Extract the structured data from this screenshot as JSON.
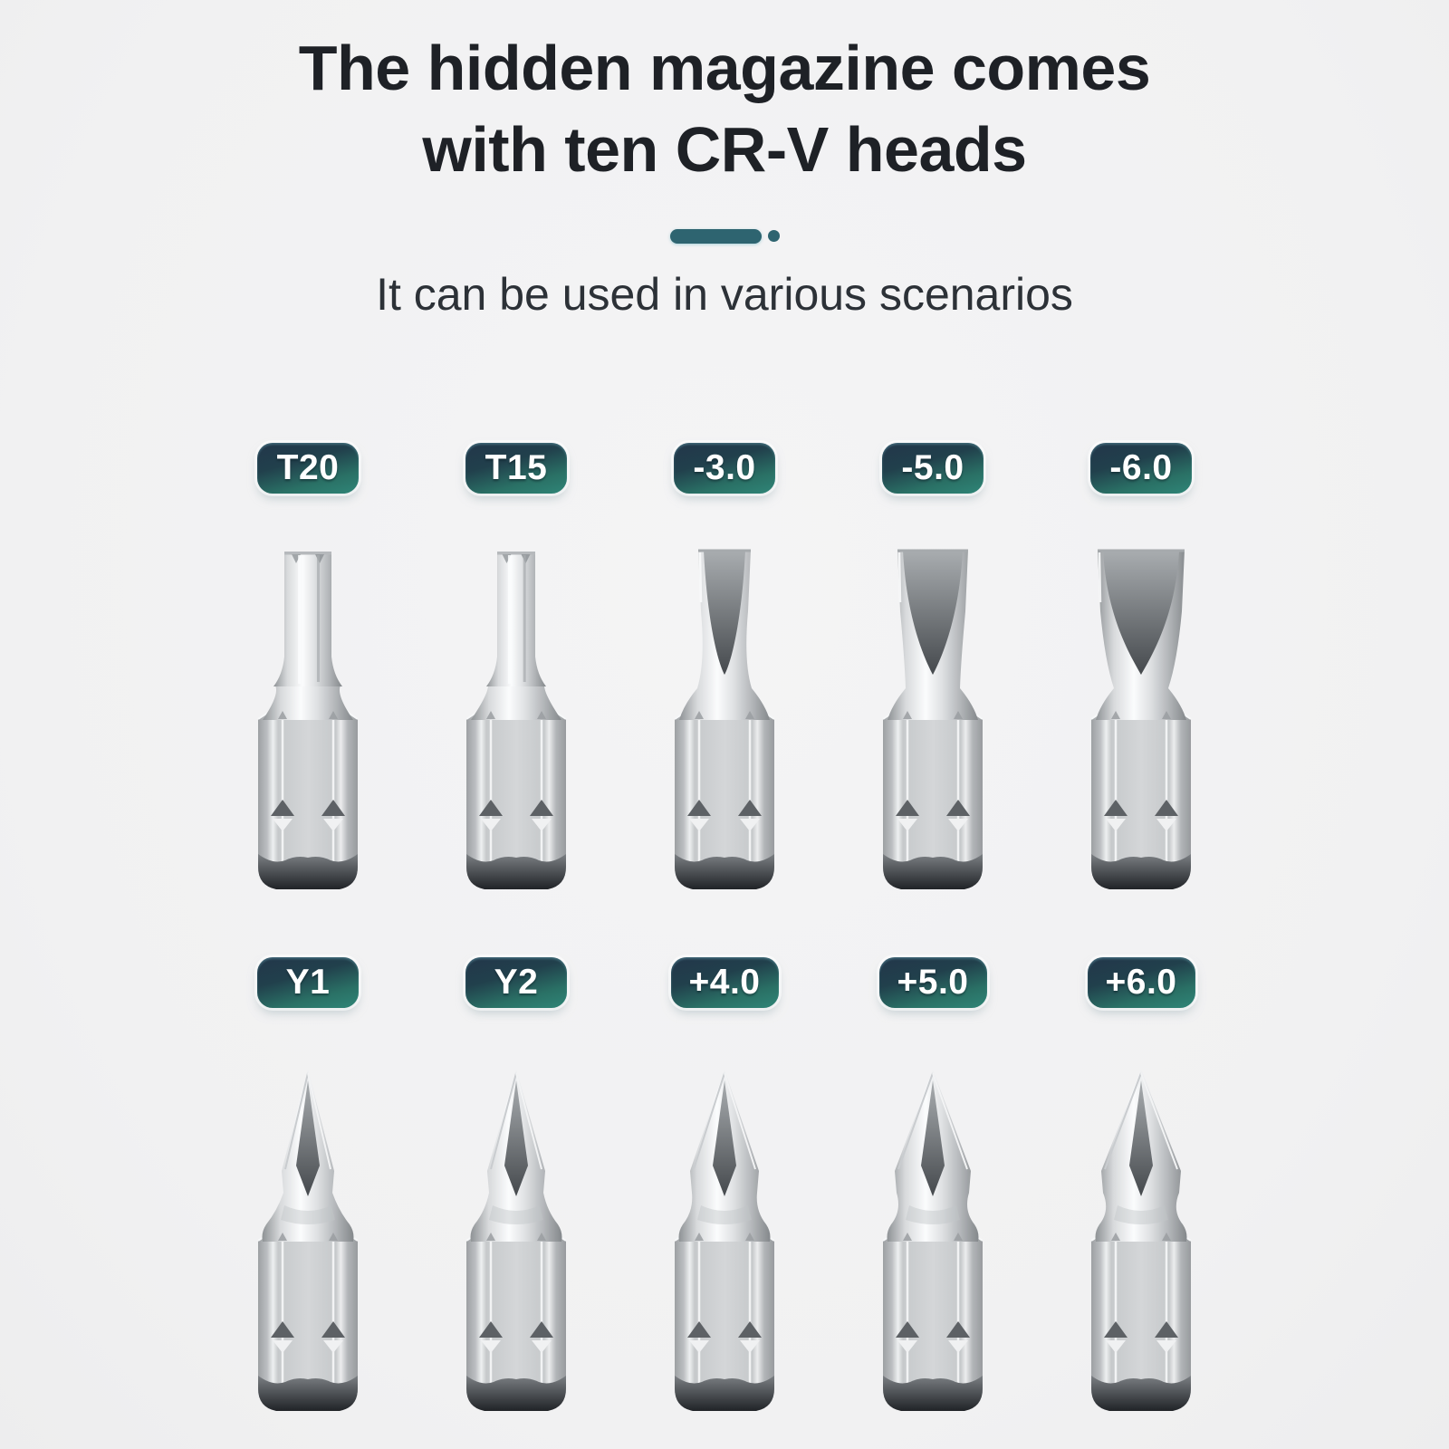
{
  "header": {
    "title_line1": "The hidden magazine comes",
    "title_line2": "with ten CR-V heads",
    "subtitle": "It can be used in various scenarios"
  },
  "colors": {
    "background": "#f2f2f3",
    "title_text": "#1e2126",
    "subtitle_text": "#2c3137",
    "divider_accent": "#2e6470",
    "badge_gradient_top": "#22364a",
    "badge_gradient_bottom": "#2f8577",
    "badge_text": "#ffffff",
    "metal_light": "#d4d6d8",
    "metal_dark": "#989b9e"
  },
  "bits": {
    "rows": [
      {
        "items": [
          {
            "label": "T20",
            "type": "torx",
            "tip_width": 52
          },
          {
            "label": "T15",
            "type": "torx",
            "tip_width": 42
          },
          {
            "label": "-3.0",
            "type": "slotted",
            "tip_width": 58
          },
          {
            "label": "-5.0",
            "type": "slotted",
            "tip_width": 78
          },
          {
            "label": "-6.0",
            "type": "slotted",
            "tip_width": 96
          }
        ]
      },
      {
        "items": [
          {
            "label": "Y1",
            "type": "cross",
            "tip_width": 58
          },
          {
            "label": "Y2",
            "type": "cross",
            "tip_width": 64
          },
          {
            "label": "+4.0",
            "type": "cross",
            "tip_width": 76
          },
          {
            "label": "+5.0",
            "type": "cross",
            "tip_width": 84
          },
          {
            "label": "+6.0",
            "type": "cross",
            "tip_width": 88
          }
        ]
      }
    ]
  }
}
